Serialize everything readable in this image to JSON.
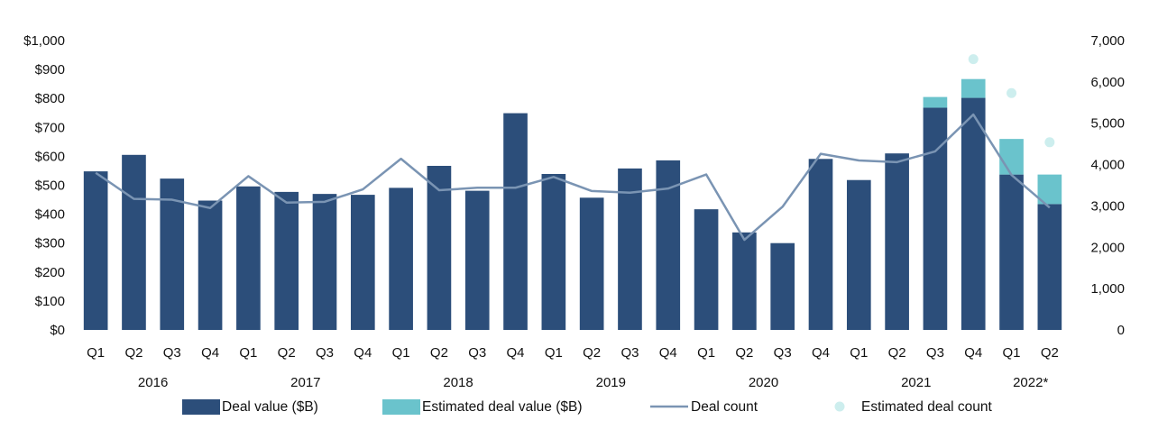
{
  "chart_data": {
    "type": "bar",
    "title": "",
    "xlabel": "",
    "ylabel": "",
    "categories": [
      "Q1",
      "Q2",
      "Q3",
      "Q4",
      "Q1",
      "Q2",
      "Q3",
      "Q4",
      "Q1",
      "Q2",
      "Q3",
      "Q4",
      "Q1",
      "Q2",
      "Q3",
      "Q4",
      "Q1",
      "Q2",
      "Q3",
      "Q4",
      "Q1",
      "Q2",
      "Q3",
      "Q4",
      "Q1",
      "Q2"
    ],
    "years": [
      {
        "label": "2016",
        "start": 0,
        "end": 3
      },
      {
        "label": "2017",
        "start": 4,
        "end": 7
      },
      {
        "label": "2018",
        "start": 8,
        "end": 11
      },
      {
        "label": "2019",
        "start": 12,
        "end": 15
      },
      {
        "label": "2020",
        "start": 16,
        "end": 19
      },
      {
        "label": "2021",
        "start": 20,
        "end": 23
      },
      {
        "label": "2022*",
        "start": 24,
        "end": 25
      }
    ],
    "ylim_left": [
      0,
      1000
    ],
    "ylim_right": [
      0,
      7000
    ],
    "left_ticks": [
      "$0",
      "$100",
      "$200",
      "$300",
      "$400",
      "$500",
      "$600",
      "$700",
      "$800",
      "$900",
      "$1,000"
    ],
    "right_ticks": [
      "0",
      "1,000",
      "2,000",
      "3,000",
      "4,000",
      "5,000",
      "6,000",
      "7,000"
    ],
    "grid": false,
    "legend_position": "bottom",
    "series": [
      {
        "name": "Deal value ($B)",
        "kind": "bar",
        "axis": "left",
        "color": "#2c4e7a",
        "values": [
          548,
          605,
          523,
          447,
          496,
          477,
          470,
          467,
          491,
          567,
          481,
          749,
          539,
          457,
          558,
          586,
          417,
          337,
          300,
          591,
          518,
          610,
          768,
          802,
          537,
          435
        ]
      },
      {
        "name": "Estimated deal value ($B)",
        "kind": "bar-stack",
        "axis": "left",
        "color": "#6ac3cc",
        "values": [
          0,
          0,
          0,
          0,
          0,
          0,
          0,
          0,
          0,
          0,
          0,
          0,
          0,
          0,
          0,
          0,
          0,
          0,
          0,
          0,
          0,
          0,
          37,
          65,
          123,
          102
        ]
      },
      {
        "name": "Deal count",
        "kind": "line",
        "axis": "right",
        "color": "#7a94b3",
        "values": [
          3800,
          3170,
          3150,
          2950,
          3720,
          3080,
          3100,
          3400,
          4140,
          3380,
          3440,
          3440,
          3700,
          3360,
          3320,
          3420,
          3760,
          2180,
          2980,
          4260,
          4100,
          4060,
          4320,
          5210,
          3750,
          2960
        ]
      },
      {
        "name": "Estimated deal count",
        "kind": "dots",
        "axis": "right",
        "color": "#cdeeee",
        "values": [
          null,
          null,
          null,
          null,
          null,
          null,
          null,
          null,
          null,
          null,
          null,
          null,
          null,
          null,
          null,
          null,
          null,
          null,
          null,
          null,
          null,
          null,
          null,
          6550,
          5730,
          4540
        ]
      }
    ]
  }
}
